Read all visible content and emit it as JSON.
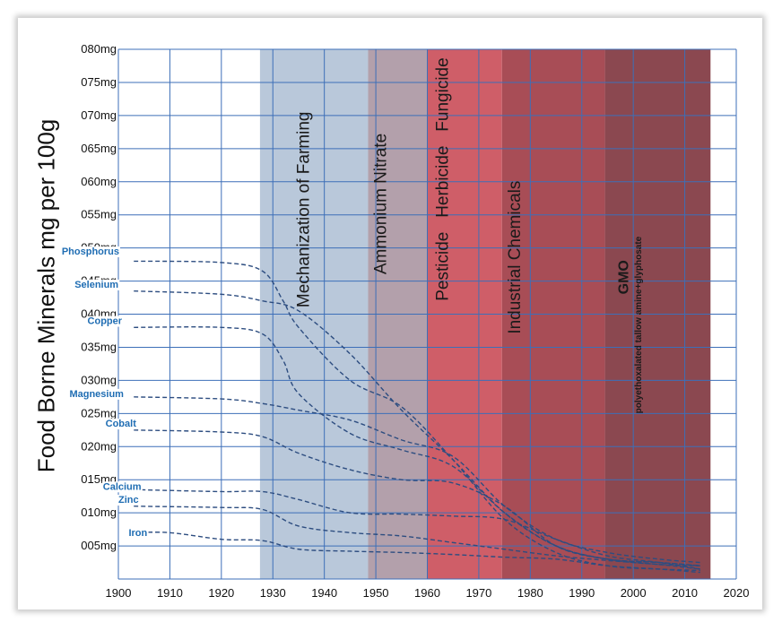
{
  "chart_data": {
    "type": "line",
    "ylabel": "Food Borne Minerals mg per 100g",
    "xlim": [
      1900,
      2020
    ],
    "ylim": [
      0,
      80
    ],
    "x_ticks": [
      "1900",
      "1910",
      "1920",
      "1930",
      "1940",
      "1950",
      "1960",
      "1970",
      "1980",
      "1990",
      "2000",
      "2010",
      "2020"
    ],
    "y_ticks": [
      "005mg",
      "010mg",
      "015mg",
      "020mg",
      "025mg",
      "030mg",
      "035mg",
      "040mg",
      "045mg",
      "050mg",
      "055mg",
      "060mg",
      "065mg",
      "070mg",
      "075mg",
      "080mg"
    ],
    "eras": [
      {
        "label": "Mechanization of Farming",
        "start": 1927.5,
        "end": 1948.5,
        "color": "#b9c8da"
      },
      {
        "label": "Ammonium Nitrate",
        "start": 1948.5,
        "end": 1960,
        "color": "#b3a0ab"
      },
      {
        "label": "Pesticide   Herbicide   Fungicide",
        "start": 1960,
        "end": 1974.5,
        "color": "#cf5e68"
      },
      {
        "label": "Industrial Chemicals",
        "start": 1974.5,
        "end": 1994.5,
        "color": "#a84d56"
      },
      {
        "label": "GMO",
        "sublabel": "polyethoxalated tallow amine+glyphosate",
        "start": 1994.5,
        "end": 2015,
        "color": "#8b4850"
      }
    ],
    "series": [
      {
        "name": "Phosphorus",
        "color": "#1f6db3",
        "x": [
          1903,
          1920,
          1928,
          1932,
          1935,
          1945,
          1955,
          1965,
          1975,
          1985,
          1995,
          2005,
          2013
        ],
        "y": [
          48,
          47.8,
          46.5,
          42,
          38,
          30,
          26,
          18,
          9,
          4,
          2,
          1.5,
          1.3
        ]
      },
      {
        "name": "Selenium",
        "color": "#1f6db3",
        "x": [
          1903,
          1920,
          1928,
          1935,
          1945,
          1955,
          1965,
          1975,
          1985,
          1995,
          2005,
          2013
        ],
        "y": [
          43.5,
          43,
          42,
          40.5,
          34,
          25.5,
          18,
          10,
          5,
          3,
          2.2,
          2
        ]
      },
      {
        "name": "Copper",
        "color": "#1f6db3",
        "x": [
          1903,
          1920,
          1928,
          1932,
          1935,
          1945,
          1955,
          1965,
          1975,
          1985,
          1995,
          2005,
          2013
        ],
        "y": [
          38,
          38,
          37,
          33,
          28,
          22,
          19.5,
          17,
          10,
          5,
          3,
          2.5,
          2
        ]
      },
      {
        "name": "Magnesium",
        "color": "#1f6db3",
        "x": [
          1903,
          1920,
          1928,
          1935,
          1945,
          1955,
          1965,
          1975,
          1985,
          1995,
          2005,
          2013
        ],
        "y": [
          27.5,
          27.2,
          26.5,
          25.5,
          24,
          21,
          18.5,
          11,
          6,
          4,
          3,
          2.5
        ]
      },
      {
        "name": "Cobalt",
        "color": "#1f6db3",
        "x": [
          1903,
          1920,
          1928,
          1935,
          1945,
          1955,
          1965,
          1975,
          1985,
          1995,
          2005,
          2013
        ],
        "y": [
          22.5,
          22.2,
          21.5,
          19,
          16.5,
          15,
          14.5,
          11,
          5,
          3,
          2.5,
          2
        ]
      },
      {
        "name": "Calcium",
        "color": "#1f6db3",
        "x": [
          1903,
          1920,
          1928,
          1935,
          1945,
          1955,
          1965,
          1975,
          1985,
          1995,
          2005,
          2013
        ],
        "y": [
          13.5,
          13.2,
          13.2,
          12,
          10,
          9.8,
          9.5,
          9,
          6,
          3.5,
          2.5,
          1.5
        ]
      },
      {
        "name": "Zinc",
        "color": "#1f6db3",
        "x": [
          1903,
          1920,
          1928,
          1935,
          1945,
          1955,
          1965,
          1975,
          1985,
          1995,
          2005,
          2013
        ],
        "y": [
          11,
          10.8,
          10.5,
          8,
          7,
          6.5,
          5.5,
          4.5,
          3.5,
          2.8,
          2.2,
          1.5
        ]
      },
      {
        "name": "Iron",
        "color": "#1f6db3",
        "x": [
          1903,
          1910,
          1920,
          1928,
          1935,
          1945,
          1955,
          1965,
          1975,
          1985,
          1995,
          2005,
          2013
        ],
        "y": [
          7,
          7,
          6,
          5.8,
          4.5,
          4.2,
          4,
          3.7,
          3.3,
          3,
          2,
          1.5,
          1
        ]
      }
    ],
    "series_label_color": "#1f6db3",
    "grid": true,
    "grid_color": "#3d6fb8",
    "line_color": "#2d4d80"
  }
}
